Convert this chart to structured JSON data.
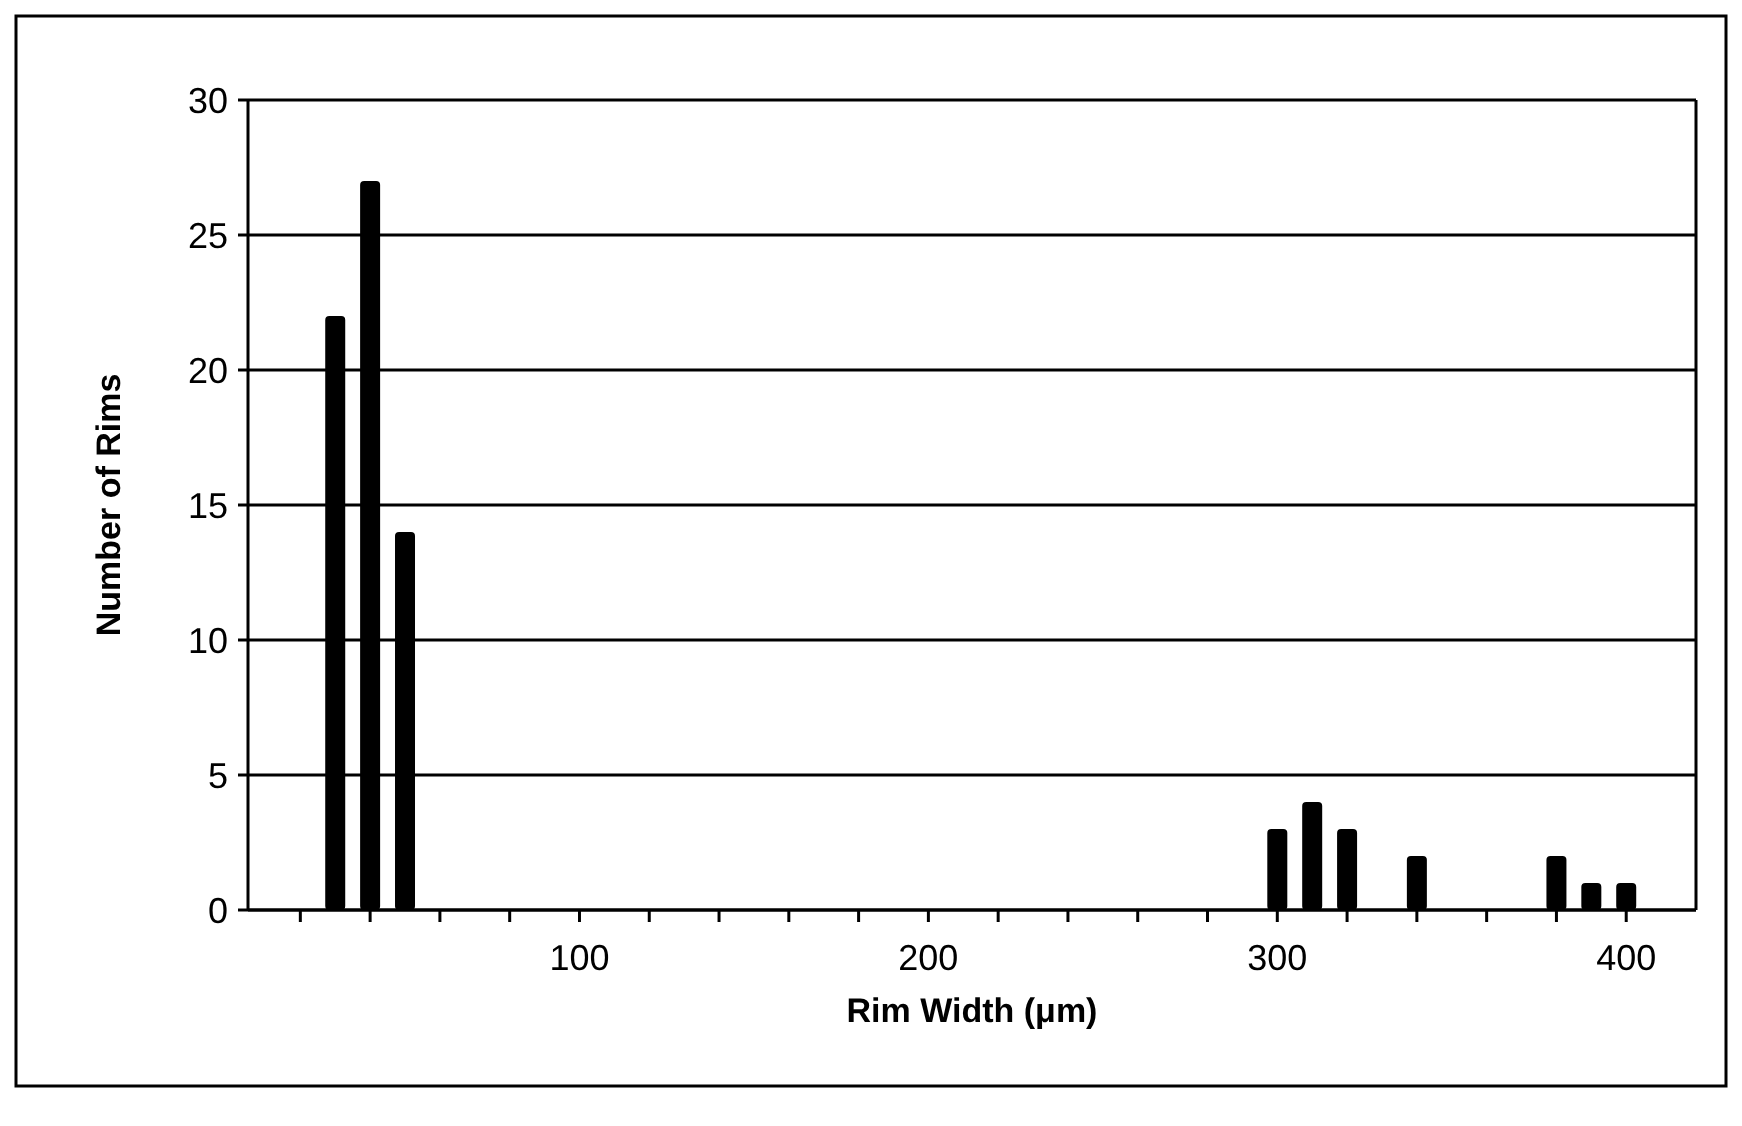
{
  "chart_data": {
    "type": "bar",
    "xlabel": "Rim Width (μm)",
    "ylabel": "Number of Rims",
    "x": [
      30,
      40,
      50,
      300,
      310,
      320,
      340,
      380,
      390,
      400
    ],
    "values": [
      22,
      27,
      14,
      3,
      4,
      3,
      2,
      2,
      1,
      1
    ],
    "color": "#000000",
    "xlim": [
      5,
      420
    ],
    "xticks": [
      {
        "value": 20,
        "label": null
      },
      {
        "value": 40,
        "label": null
      },
      {
        "value": 60,
        "label": null
      },
      {
        "value": 80,
        "label": null
      },
      100,
      {
        "value": 120,
        "label": null
      },
      {
        "value": 140,
        "label": null
      },
      {
        "value": 160,
        "label": null
      },
      {
        "value": 180,
        "label": null
      },
      200,
      {
        "value": 220,
        "label": null
      },
      {
        "value": 240,
        "label": null
      },
      {
        "value": 260,
        "label": null
      },
      {
        "value": 280,
        "label": null
      },
      300,
      {
        "value": 320,
        "label": null
      },
      {
        "value": 340,
        "label": null
      },
      {
        "value": 360,
        "label": null
      },
      {
        "value": 380,
        "label": null
      },
      400
    ],
    "ylim": [
      0,
      30
    ],
    "yticks": [
      0,
      5,
      10,
      15,
      20,
      25,
      30
    ],
    "grid": "y"
  }
}
